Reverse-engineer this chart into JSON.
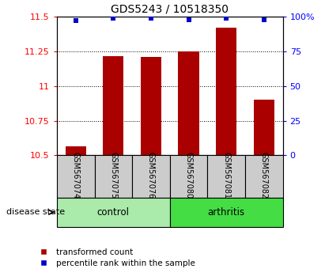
{
  "title": "GDS5243 / 10518350",
  "samples": [
    "GSM567074",
    "GSM567075",
    "GSM567076",
    "GSM567080",
    "GSM567081",
    "GSM567082"
  ],
  "bar_values": [
    10.565,
    11.215,
    11.21,
    11.248,
    11.42,
    10.9
  ],
  "percentile_values": [
    97,
    99,
    99,
    98,
    99,
    98
  ],
  "ylim_left": [
    10.5,
    11.5
  ],
  "ylim_right": [
    0,
    100
  ],
  "yticks_left": [
    10.5,
    10.75,
    11.0,
    11.25,
    11.5
  ],
  "ytick_labels_left": [
    "10.5",
    "10.75",
    "11",
    "11.25",
    "11.5"
  ],
  "yticks_right": [
    0,
    25,
    50,
    75,
    100
  ],
  "ytick_labels_right": [
    "0",
    "25",
    "50",
    "75",
    "100%"
  ],
  "groups": [
    {
      "label": "control",
      "indices": [
        0,
        1,
        2
      ],
      "color": "#AAEAAA"
    },
    {
      "label": "arthritis",
      "indices": [
        3,
        4,
        5
      ],
      "color": "#44DD44"
    }
  ],
  "bar_color": "#AA0000",
  "percentile_color": "#0000CC",
  "bar_width": 0.55,
  "group_label": "disease state",
  "legend_items": [
    {
      "label": "transformed count",
      "color": "#AA0000"
    },
    {
      "label": "percentile rank within the sample",
      "color": "#0000CC"
    }
  ],
  "sample_box_color": "#CCCCCC"
}
